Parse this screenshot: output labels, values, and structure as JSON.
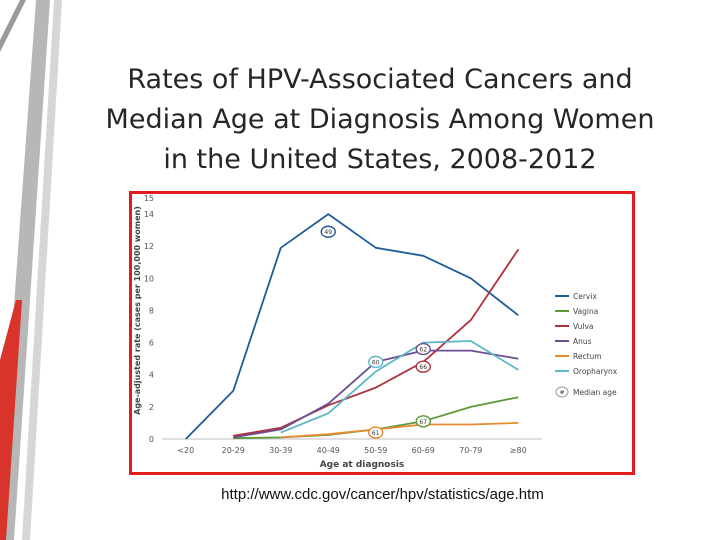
{
  "slide": {
    "title_lines": [
      "Rates of HPV-Associated Cancers and",
      "Median Age at Diagnosis Among Women",
      "in the United States, 2008-2012"
    ],
    "source_url": "http://www.cdc.gov/cancer/hpv/statistics/age.htm",
    "accent_color": "#e21d1d"
  },
  "chart_data": {
    "type": "line",
    "title": "",
    "xlabel": "Age at diagnosis",
    "ylabel": "Age-adjusted rate (cases per 100,000 women)",
    "categories": [
      "<20",
      "20-29",
      "30-39",
      "40-49",
      "50-59",
      "60-69",
      "70-79",
      "≥80"
    ],
    "ylim": [
      0,
      15
    ],
    "yticks": [
      0,
      2,
      4,
      6,
      8,
      10,
      12,
      14,
      15
    ],
    "grid": false,
    "legend_position": "right",
    "series": [
      {
        "name": "Cervix",
        "color": "#1f5d99",
        "values": [
          0,
          3,
          11.9,
          14,
          11.9,
          11.4,
          10,
          7.7
        ]
      },
      {
        "name": "Vagina",
        "color": "#5e9a3a",
        "values": [
          null,
          0.05,
          0.1,
          0.25,
          0.6,
          1.1,
          2,
          2.6
        ]
      },
      {
        "name": "Vulva",
        "color": "#b0333b",
        "values": [
          null,
          0.2,
          0.7,
          2.1,
          3.2,
          4.8,
          7.4,
          11.8
        ]
      },
      {
        "name": "Anus",
        "color": "#6a4f92",
        "values": [
          null,
          0.1,
          0.6,
          2.2,
          4.8,
          5.5,
          5.5,
          5
        ]
      },
      {
        "name": "Rectum",
        "color": "#e88a2e",
        "values": [
          null,
          null,
          0.1,
          0.3,
          0.6,
          0.9,
          0.9,
          1
        ]
      },
      {
        "name": "Oropharynx",
        "color": "#5bb6c6",
        "values": [
          null,
          null,
          0.4,
          1.6,
          4.2,
          6,
          6.1,
          4.3
        ]
      }
    ],
    "median_age_marker_label": "Median age",
    "median_age_marker_example": "#",
    "median_ages": [
      {
        "series": "Cervix",
        "label": "49",
        "x": "40-49",
        "y": 12.9,
        "border": "#1f5d99"
      },
      {
        "series": "Anus",
        "label": "62",
        "x": "60-69",
        "y": 5.6,
        "border": "#6a4f92"
      },
      {
        "series": "Oropharynx",
        "label": "60",
        "x": "50-59",
        "y": 4.8,
        "border": "#5bb6c6"
      },
      {
        "series": "Vulva",
        "label": "66",
        "x": "60-69",
        "y": 4.5,
        "border": "#b0333b"
      },
      {
        "series": "Vagina",
        "label": "67",
        "x": "60-69",
        "y": 1.1,
        "border": "#5e9a3a"
      },
      {
        "series": "Rectum",
        "label": "61",
        "x": "50-59",
        "y": 0.4,
        "border": "#e88a2e"
      }
    ]
  }
}
